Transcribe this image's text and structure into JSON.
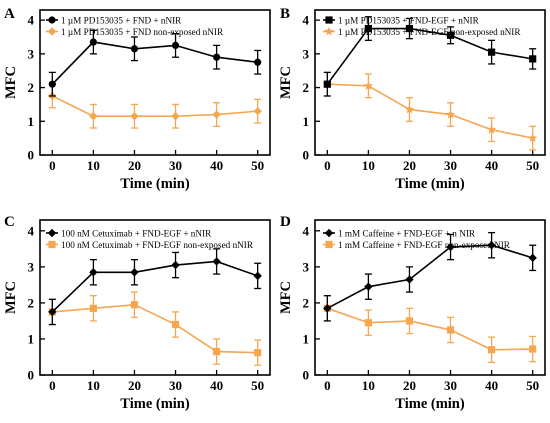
{
  "colors": {
    "series1": "#000000",
    "series2": "#F6A650"
  },
  "chart_data": [
    {
      "panel_label": "A",
      "type": "line",
      "xlabel": "Time (min)",
      "ylabel": "MFC",
      "xlim": [
        -3,
        53
      ],
      "ylim": [
        0,
        4.3
      ],
      "xticks": [
        "0",
        "10",
        "20",
        "30",
        "40",
        "50"
      ],
      "yticks": [
        "0",
        "1",
        "2",
        "3",
        "4"
      ],
      "x": [
        0,
        10,
        20,
        30,
        40,
        50
      ],
      "legend_position": "top-left",
      "series": [
        {
          "name": "1 µM PD153035 + FND + nNIR",
          "marker": "circle",
          "values": [
            2.1,
            3.35,
            3.15,
            3.25,
            2.9,
            2.75
          ],
          "errors": [
            0.35,
            0.35,
            0.35,
            0.35,
            0.35,
            0.35
          ]
        },
        {
          "name": "1 µM PD153035 + FND non-exposed nNIR",
          "marker": "diamond",
          "values": [
            1.75,
            1.15,
            1.15,
            1.15,
            1.2,
            1.3
          ],
          "errors": [
            0.35,
            0.35,
            0.35,
            0.35,
            0.35,
            0.35
          ]
        }
      ]
    },
    {
      "panel_label": "B",
      "type": "line",
      "xlabel": "Time (min)",
      "ylabel": "MFC",
      "xlim": [
        -3,
        53
      ],
      "ylim": [
        0,
        4.3
      ],
      "xticks": [
        "0",
        "10",
        "20",
        "30",
        "40",
        "50"
      ],
      "yticks": [
        "0",
        "1",
        "2",
        "3",
        "4"
      ],
      "x": [
        0,
        10,
        20,
        30,
        40,
        50
      ],
      "legend_position": "top-left",
      "series": [
        {
          "name": "1 µM PD153035 + FND-EGF + nNIR",
          "marker": "square",
          "values": [
            2.1,
            3.75,
            3.75,
            3.55,
            3.05,
            2.85
          ],
          "errors": [
            0.35,
            0.35,
            0.3,
            0.25,
            0.35,
            0.3
          ]
        },
        {
          "name": "1 µM PD153035 + FND-EGF non-exposed nNIR",
          "marker": "star",
          "values": [
            2.1,
            2.05,
            1.35,
            1.2,
            0.75,
            0.5
          ],
          "errors": [
            0.35,
            0.35,
            0.35,
            0.35,
            0.35,
            0.35
          ]
        }
      ]
    },
    {
      "panel_label": "C",
      "type": "line",
      "xlabel": "Time (min)",
      "ylabel": "MFC",
      "xlim": [
        -3,
        53
      ],
      "ylim": [
        0,
        4.3
      ],
      "xticks": [
        "0",
        "10",
        "20",
        "30",
        "40",
        "50"
      ],
      "yticks": [
        "0",
        "1",
        "2",
        "3",
        "4"
      ],
      "x": [
        0,
        10,
        20,
        30,
        40,
        50
      ],
      "legend_position": "top-left",
      "series": [
        {
          "name": "100 nM Cetuximab + FND-EGF + nNIR",
          "marker": "diamond",
          "values": [
            1.75,
            2.85,
            2.85,
            3.05,
            3.15,
            2.75
          ],
          "errors": [
            0.35,
            0.35,
            0.35,
            0.35,
            0.35,
            0.35
          ]
        },
        {
          "name": "100 nM Cetuximab + FND-EGF non-exposed nNIR",
          "marker": "square",
          "values": [
            1.75,
            1.85,
            1.95,
            1.4,
            0.65,
            0.62
          ],
          "errors": [
            0.35,
            0.35,
            0.35,
            0.35,
            0.35,
            0.35
          ]
        }
      ]
    },
    {
      "panel_label": "D",
      "type": "line",
      "xlabel": "Time (min)",
      "ylabel": "MFC",
      "xlim": [
        -3,
        53
      ],
      "ylim": [
        0,
        4.3
      ],
      "xticks": [
        "0",
        "10",
        "20",
        "30",
        "40",
        "50"
      ],
      "yticks": [
        "0",
        "1",
        "2",
        "3",
        "4"
      ],
      "x": [
        0,
        10,
        20,
        30,
        40,
        50
      ],
      "legend_position": "top-left",
      "series": [
        {
          "name": "1 mM Caffeine + FND-EGF + n NIR",
          "marker": "diamond",
          "values": [
            1.85,
            2.45,
            2.65,
            3.55,
            3.6,
            3.25
          ],
          "errors": [
            0.35,
            0.35,
            0.35,
            0.35,
            0.35,
            0.35
          ]
        },
        {
          "name": "1 mM Caffeine + FND-EGF non-exposed NIR",
          "marker": "square",
          "values": [
            1.85,
            1.45,
            1.5,
            1.25,
            0.7,
            0.72
          ],
          "errors": [
            0.35,
            0.35,
            0.35,
            0.35,
            0.35,
            0.35
          ]
        }
      ]
    }
  ]
}
